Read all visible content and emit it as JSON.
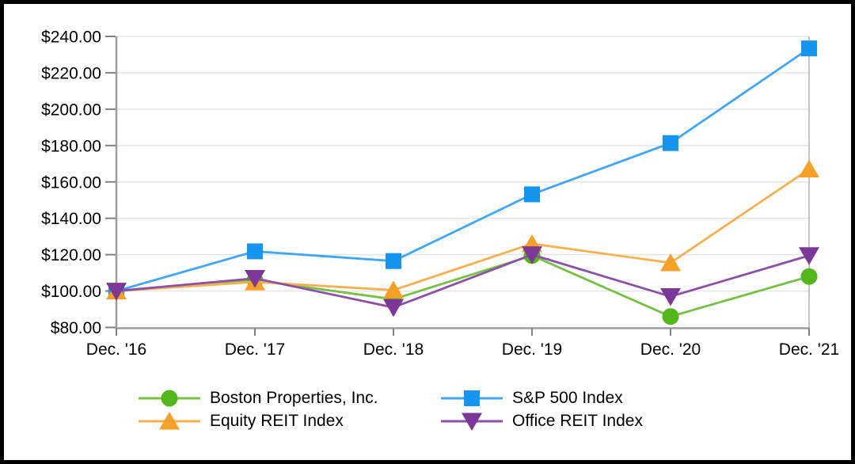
{
  "chart_data": {
    "type": "line",
    "x": [
      "Dec. '16",
      "Dec. '17",
      "Dec. '18",
      "Dec. '19",
      "Dec. '20",
      "Dec. '21"
    ],
    "series": [
      {
        "key": "boston-properties",
        "name": "Boston Properties, Inc.",
        "marker": "circle",
        "marker_color": "#53b71c",
        "line_color": "#76c144",
        "values": [
          100.0,
          106.0,
          95.5,
          119.5,
          86.0,
          108.0
        ]
      },
      {
        "key": "sp500",
        "name": "S&P 500 Index",
        "marker": "square",
        "marker_color": "#1496f0",
        "line_color": "#41a6f3",
        "values": [
          100.0,
          121.83,
          116.49,
          153.17,
          181.35,
          233.41
        ]
      },
      {
        "key": "equity-reit",
        "name": "Equity REIT Index",
        "marker": "triangle-up",
        "marker_color": "#f5a127",
        "line_color": "#f8b04e",
        "values": [
          100.0,
          105.0,
          100.5,
          126.0,
          115.5,
          167.0
        ]
      },
      {
        "key": "office-reit",
        "name": "Office REIT Index",
        "marker": "triangle-down",
        "marker_color": "#7b3896",
        "line_color": "#8d50a7",
        "values": [
          100.0,
          107.0,
          91.0,
          120.0,
          97.0,
          119.5
        ]
      }
    ],
    "ylim": [
      80,
      240
    ],
    "y_tick_step": 20,
    "y_tick_labels": [
      "$240.00",
      "$220.00",
      "$200.00",
      "$180.00",
      "$160.00",
      "$140.00",
      "$120.00",
      "$100.00",
      "$80.00"
    ],
    "y_tick_prefix": "$",
    "grid": "horizontal",
    "legend_position": "bottom",
    "legend_columns": [
      [
        0,
        2
      ],
      [
        1,
        3
      ]
    ]
  },
  "colors": {
    "axis": "#9d9d9d",
    "tick": "#808080",
    "gridline": "#e5e5e5",
    "plot_right_border": "#b0b0b0",
    "frame_border": "#000000",
    "background": "#ffffff",
    "text": "#000000"
  }
}
